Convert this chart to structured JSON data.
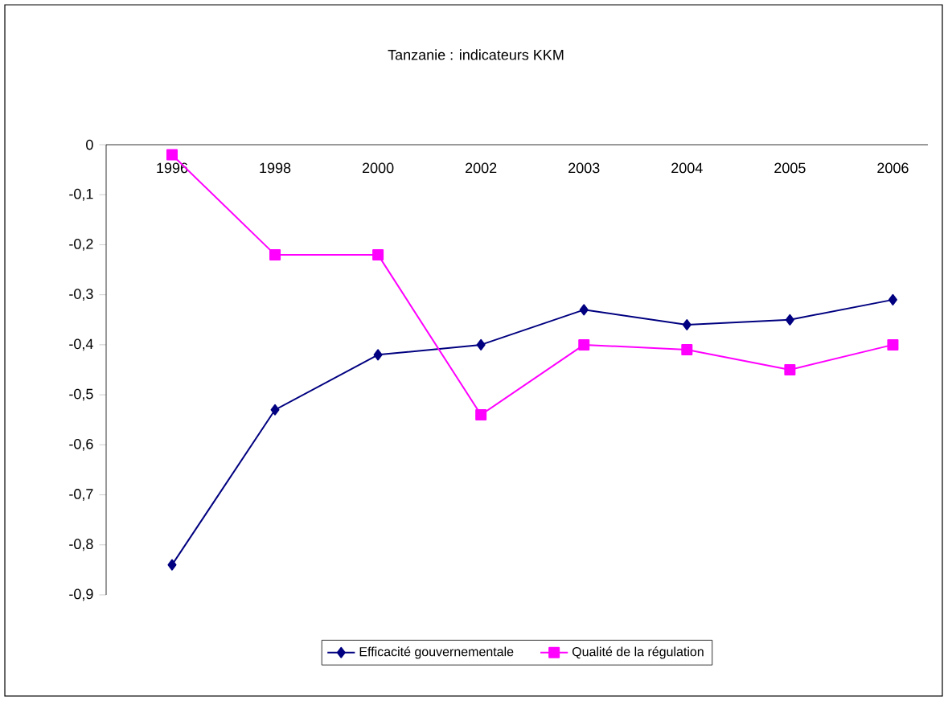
{
  "chart_data": {
    "type": "line",
    "title": "Tanzanie : indicateurs  KKM",
    "categories": [
      "1996",
      "1998",
      "2000",
      "2002",
      "2003",
      "2004",
      "2005",
      "2006"
    ],
    "series": [
      {
        "name": "Efficacité gouvernementale",
        "color": "#000080",
        "marker": "diamond",
        "values": [
          -0.84,
          -0.53,
          -0.42,
          -0.4,
          -0.33,
          -0.36,
          -0.35,
          -0.31
        ]
      },
      {
        "name": "Qualité de la régulation",
        "color": "#ff00ff",
        "marker": "square",
        "values": [
          -0.02,
          -0.22,
          -0.22,
          -0.54,
          -0.4,
          -0.41,
          -0.45,
          -0.4
        ]
      }
    ],
    "ylim": [
      -0.9,
      0
    ],
    "yticks": [
      {
        "value": 0,
        "label": "0"
      },
      {
        "value": -0.1,
        "label": "-0,1"
      },
      {
        "value": -0.2,
        "label": "-0,2"
      },
      {
        "value": -0.3,
        "label": "-0,3"
      },
      {
        "value": -0.4,
        "label": "-0,4"
      },
      {
        "value": -0.5,
        "label": "-0,5"
      },
      {
        "value": -0.6,
        "label": "-0,6"
      },
      {
        "value": -0.7,
        "label": "-0,7"
      },
      {
        "value": -0.8,
        "label": "-0,8"
      },
      {
        "value": -0.9,
        "label": "-0,9"
      }
    ],
    "grid": false,
    "legend": "bottom",
    "line_style": "solid"
  }
}
